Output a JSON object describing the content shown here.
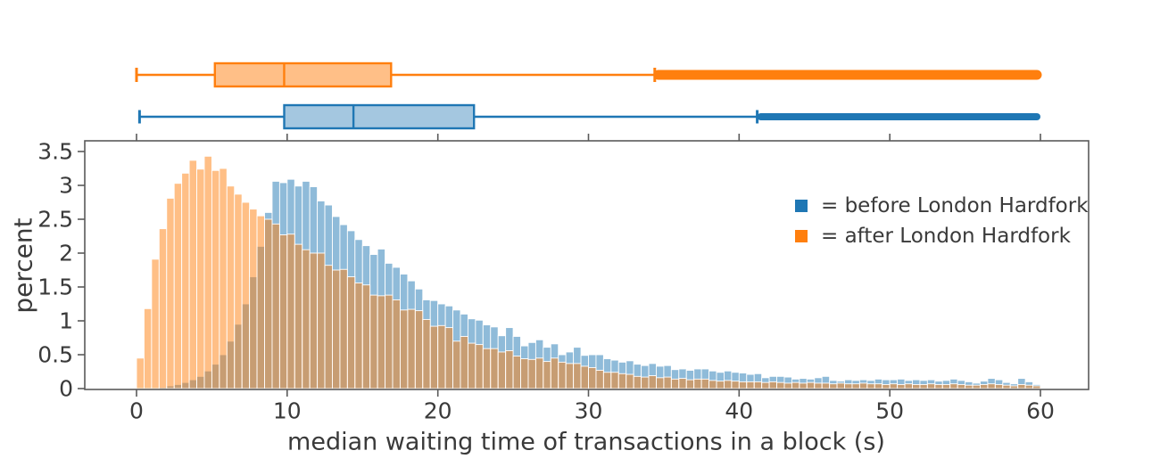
{
  "figure": {
    "background": "#ffffff",
    "colors": {
      "before": "#1f77b4",
      "after": "#ff7f0e",
      "before_fill": "#a4c7e0",
      "after_fill": "#ffbf87",
      "axis": "#5a5a5a",
      "text": "#3a3a3a",
      "bar_edge": "#ffffff"
    },
    "legend": {
      "items": [
        {
          "series": "before",
          "label": "= before London Hardfork",
          "color": "#1f77b4"
        },
        {
          "series": "after",
          "label": "= after London Hardfork",
          "color": "#ff7f0e"
        }
      ]
    },
    "chart_data": {
      "type": "bar",
      "subtype": "overlaid-histograms-with-boxplots",
      "title": "",
      "xlabel": "median waiting time of transactions in a block (s)",
      "ylabel": "percent",
      "x_ticks": [
        0,
        10,
        20,
        30,
        40,
        50,
        60
      ],
      "y_ticks": [
        0,
        0.5,
        1,
        1.5,
        2,
        2.5,
        3,
        3.5
      ],
      "xlim": [
        -3.4,
        63.2
      ],
      "ylim": [
        0,
        3.66
      ],
      "grid": false,
      "legend_position": "upper right inside",
      "bin_start": 0,
      "bin_width": 0.5,
      "series": [
        {
          "name": "before London Hardfork",
          "color": "#1f77b4",
          "opacity": 0.5,
          "values": [
            0,
            0,
            0.01,
            0.02,
            0.04,
            0.06,
            0.09,
            0.13,
            0.18,
            0.26,
            0.36,
            0.5,
            0.7,
            0.95,
            1.25,
            1.65,
            2.1,
            2.6,
            3.06,
            3.04,
            3.09,
            2.99,
            3.06,
            2.98,
            2.77,
            2.71,
            2.54,
            2.42,
            2.33,
            2.2,
            2.11,
            1.98,
            2.06,
            1.85,
            1.79,
            1.69,
            1.59,
            1.47,
            1.31,
            1.3,
            1.25,
            1.22,
            1.16,
            1.1,
            1.03,
            1.01,
            0.94,
            0.91,
            0.78,
            0.9,
            0.77,
            0.63,
            0.68,
            0.72,
            0.61,
            0.66,
            0.5,
            0.54,
            0.61,
            0.49,
            0.5,
            0.5,
            0.44,
            0.42,
            0.39,
            0.41,
            0.36,
            0.34,
            0.37,
            0.33,
            0.34,
            0.28,
            0.29,
            0.27,
            0.29,
            0.29,
            0.26,
            0.24,
            0.26,
            0.24,
            0.23,
            0.21,
            0.22,
            0.16,
            0.18,
            0.18,
            0.17,
            0.14,
            0.15,
            0.14,
            0.16,
            0.18,
            0.12,
            0.11,
            0.13,
            0.12,
            0.13,
            0.12,
            0.14,
            0.13,
            0.13,
            0.14,
            0.12,
            0.13,
            0.12,
            0.13,
            0.11,
            0.12,
            0.14,
            0.12,
            0.1,
            0.08,
            0.11,
            0.15,
            0.13,
            0.09,
            0.07,
            0.15,
            0.1,
            0.06
          ]
        },
        {
          "name": "after London Hardfork",
          "color": "#ff7f0e",
          "opacity": 0.5,
          "values": [
            0.45,
            1.18,
            1.91,
            2.36,
            2.81,
            3.03,
            3.18,
            3.37,
            3.24,
            3.43,
            3.22,
            3.25,
            2.99,
            2.87,
            2.75,
            2.65,
            2.55,
            2.5,
            2.43,
            2.27,
            2.28,
            2.13,
            2.05,
            2,
            2,
            1.82,
            1.75,
            1.76,
            1.65,
            1.56,
            1.53,
            1.38,
            1.37,
            1.38,
            1.31,
            1.16,
            1.17,
            1.15,
            1.02,
            0.92,
            0.93,
            0.9,
            0.7,
            0.77,
            0.67,
            0.65,
            0.59,
            0.59,
            0.54,
            0.56,
            0.48,
            0.44,
            0.43,
            0.45,
            0.4,
            0.45,
            0.39,
            0.37,
            0.37,
            0.33,
            0.31,
            0.27,
            0.24,
            0.24,
            0.22,
            0.21,
            0.18,
            0.17,
            0.19,
            0.16,
            0.17,
            0.14,
            0.15,
            0.13,
            0.14,
            0.14,
            0.12,
            0.11,
            0.12,
            0.11,
            0.1,
            0.1,
            0.1,
            0.09,
            0.1,
            0.09,
            0.08,
            0.09,
            0.08,
            0.09,
            0.08,
            0.08,
            0.07,
            0.08,
            0.07,
            0.07,
            0.08,
            0.07,
            0.07,
            0.06,
            0.07,
            0.06,
            0.07,
            0.06,
            0.06,
            0.07,
            0.06,
            0.06,
            0.07,
            0.06,
            0.05,
            0.05,
            0.06,
            0.07,
            0.06,
            0.05,
            0.04,
            0.06,
            0.05,
            0.04
          ]
        }
      ],
      "boxplots": [
        {
          "name": "after London Hardfork",
          "color": "#ff7f0e",
          "whisker_low": 0.0,
          "q1": 5.2,
          "median": 9.8,
          "q3": 16.9,
          "whisker_high": 34.4,
          "outliers_from": 34.4,
          "outliers_to": 60
        },
        {
          "name": "before London Hardfork",
          "color": "#1f77b4",
          "whisker_low": 0.2,
          "q1": 9.8,
          "median": 14.4,
          "q3": 22.4,
          "whisker_high": 41.2,
          "outliers_from": 41.2,
          "outliers_to": 60
        }
      ]
    }
  }
}
